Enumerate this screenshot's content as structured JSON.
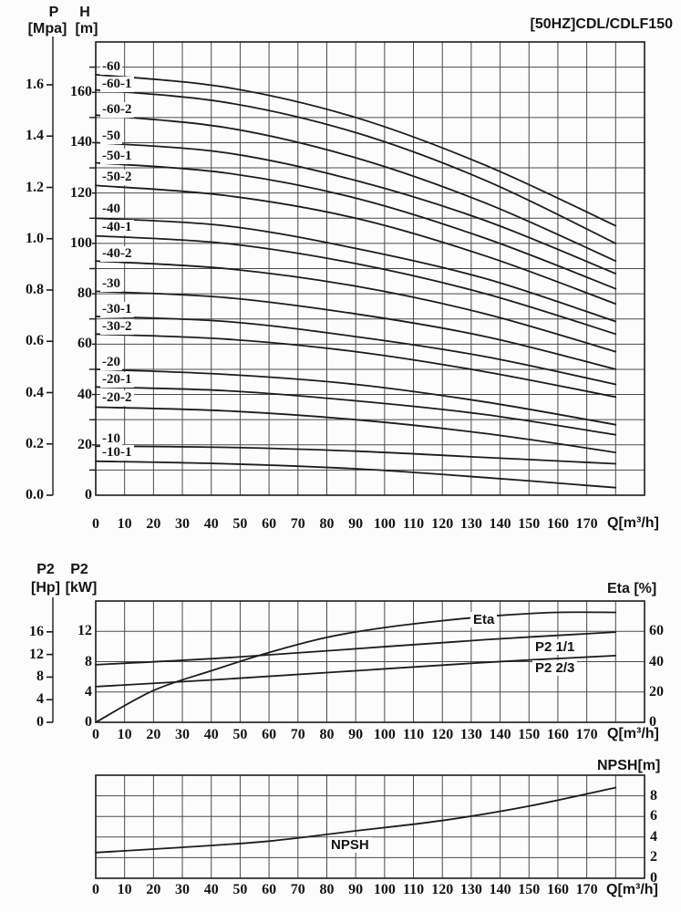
{
  "title": "[50HZ]CDL/CDLF150",
  "chart_data": [
    {
      "type": "line",
      "name": "head-flow-curves",
      "title": "[50HZ]CDL/CDLF150",
      "x_axis": {
        "label": "Q[m³/h]",
        "min": 0,
        "max": 190,
        "grid_step": 10,
        "ticks": [
          "0",
          "10",
          "20",
          "30",
          "40",
          "50",
          "60",
          "70",
          "80",
          "90",
          "100",
          "110",
          "120",
          "130",
          "140",
          "150",
          "160",
          "170"
        ]
      },
      "y_axis_pressure": {
        "name": "P",
        "unit": "[Mpa]",
        "min": 0,
        "max": 1.6,
        "ticks": [
          "0.0",
          "0.2",
          "0.4",
          "0.6",
          "0.8",
          "1.0",
          "1.2",
          "1.4",
          "1.6"
        ]
      },
      "y_axis_head": {
        "name": "H",
        "unit": "[m]",
        "min": 0,
        "max": 180,
        "grid_step": 10,
        "ticks": [
          "0",
          "20",
          "40",
          "60",
          "80",
          "100",
          "120",
          "140",
          "160"
        ]
      },
      "series": [
        {
          "label": "-60",
          "label_h": 170,
          "points": [
            [
              0,
              167
            ],
            [
              45,
              162
            ],
            [
              90,
              150
            ],
            [
              135,
              131
            ],
            [
              180,
              107
            ]
          ]
        },
        {
          "label": "-60-1",
          "label_h": 163,
          "points": [
            [
              0,
              161
            ],
            [
              45,
              156
            ],
            [
              90,
              144
            ],
            [
              135,
              125
            ],
            [
              180,
              100
            ]
          ]
        },
        {
          "label": "-60-2",
          "label_h": 153,
          "points": [
            [
              0,
              151
            ],
            [
              45,
              146
            ],
            [
              90,
              134
            ],
            [
              135,
              116
            ],
            [
              180,
              93
            ]
          ]
        },
        {
          "label": "-50",
          "label_h": 142.5,
          "points": [
            [
              0,
              140
            ],
            [
              45,
              136
            ],
            [
              90,
              125
            ],
            [
              135,
              109
            ],
            [
              180,
              88
            ]
          ]
        },
        {
          "label": "-50-1",
          "label_h": 134.5,
          "points": [
            [
              0,
              132
            ],
            [
              45,
              128
            ],
            [
              90,
              118
            ],
            [
              135,
              102
            ],
            [
              180,
              82
            ]
          ]
        },
        {
          "label": "-50-2",
          "label_h": 126,
          "points": [
            [
              0,
              123
            ],
            [
              45,
              119
            ],
            [
              90,
              110
            ],
            [
              135,
              95
            ],
            [
              180,
              76
            ]
          ]
        },
        {
          "label": "-40",
          "label_h": 113.5,
          "points": [
            [
              0,
              110
            ],
            [
              45,
              107
            ],
            [
              90,
              98
            ],
            [
              135,
              86
            ],
            [
              180,
              69
            ]
          ]
        },
        {
          "label": "-40-1",
          "label_h": 106,
          "points": [
            [
              0,
              103
            ],
            [
              45,
              100
            ],
            [
              90,
              92
            ],
            [
              135,
              80
            ],
            [
              180,
              64
            ]
          ]
        },
        {
          "label": "-40-2",
          "label_h": 95.5,
          "points": [
            [
              0,
              93
            ],
            [
              45,
              90
            ],
            [
              90,
              83
            ],
            [
              135,
              72
            ],
            [
              180,
              57
            ]
          ]
        },
        {
          "label": "-30",
          "label_h": 83.5,
          "points": [
            [
              0,
              81
            ],
            [
              45,
              78.5
            ],
            [
              90,
              72
            ],
            [
              135,
              63
            ],
            [
              180,
              50
            ]
          ]
        },
        {
          "label": "-30-1",
          "label_h": 73.5,
          "points": [
            [
              0,
              71
            ],
            [
              45,
              69
            ],
            [
              90,
              63
            ],
            [
              135,
              55
            ],
            [
              180,
              44
            ]
          ]
        },
        {
          "label": "-30-2",
          "label_h": 66.5,
          "points": [
            [
              0,
              64
            ],
            [
              45,
              62
            ],
            [
              90,
              57
            ],
            [
              135,
              49
            ],
            [
              180,
              39
            ]
          ]
        },
        {
          "label": "-20",
          "label_h": 52.5,
          "points": [
            [
              0,
              50
            ],
            [
              45,
              48
            ],
            [
              90,
              44
            ],
            [
              135,
              37
            ],
            [
              180,
              28
            ]
          ]
        },
        {
          "label": "-20-1",
          "label_h": 45.5,
          "points": [
            [
              0,
              43
            ],
            [
              45,
              41.5
            ],
            [
              90,
              37.5
            ],
            [
              135,
              32
            ],
            [
              180,
              24
            ]
          ]
        },
        {
          "label": "-20-2",
          "label_h": 38.5,
          "points": [
            [
              0,
              35
            ],
            [
              45,
              33.5
            ],
            [
              90,
              30
            ],
            [
              135,
              24.5
            ],
            [
              180,
              17
            ]
          ]
        },
        {
          "label": "-10",
          "label_h": 22,
          "points": [
            [
              0,
              19.5
            ],
            [
              45,
              19
            ],
            [
              90,
              17.5
            ],
            [
              135,
              15
            ],
            [
              180,
              12.5
            ]
          ]
        },
        {
          "label": "-10-1",
          "label_h": 16.5,
          "points": [
            [
              0,
              13.5
            ],
            [
              45,
              12.5
            ],
            [
              90,
              10.5
            ],
            [
              135,
              7
            ],
            [
              180,
              3
            ]
          ]
        }
      ]
    },
    {
      "type": "line",
      "name": "power-efficiency-curves",
      "x_axis": {
        "label": "Q[m³/h]",
        "min": 0,
        "max": 190,
        "grid_step": 10,
        "ticks": [
          "0",
          "10",
          "20",
          "30",
          "40",
          "50",
          "60",
          "70",
          "80",
          "90",
          "100",
          "110",
          "120",
          "130",
          "140",
          "150",
          "160",
          "170"
        ]
      },
      "y_axis_hp": {
        "name": "P2",
        "unit": "[Hp]",
        "min": 0,
        "max": 16,
        "ticks": [
          "0",
          "4",
          "8",
          "12",
          "16"
        ]
      },
      "y_axis_kw": {
        "name": "P2",
        "unit": "[kW]",
        "min": 0,
        "max": 16,
        "ticks": [
          "0",
          "4",
          "8",
          "12"
        ]
      },
      "y_axis_eta": {
        "title": "Eta [%]",
        "min": 0,
        "max": 80,
        "ticks": [
          "0",
          "20",
          "40",
          "60"
        ]
      },
      "series": [
        {
          "name": "Eta",
          "axis": "eta",
          "points": [
            [
              0,
              0
            ],
            [
              20,
              21
            ],
            [
              40,
              34
            ],
            [
              60,
              46
            ],
            [
              80,
              56
            ],
            [
              100,
              62.5
            ],
            [
              120,
              67
            ],
            [
              140,
              70.5
            ],
            [
              160,
              72.5
            ],
            [
              180,
              72.5
            ]
          ]
        },
        {
          "name": "P2 1/1",
          "axis": "kw",
          "points": [
            [
              0,
              7.6
            ],
            [
              45,
              8.5
            ],
            [
              90,
              9.7
            ],
            [
              135,
              10.9
            ],
            [
              180,
              11.9
            ]
          ]
        },
        {
          "name": "P2 2/3",
          "axis": "kw",
          "points": [
            [
              0,
              4.7
            ],
            [
              45,
              5.7
            ],
            [
              90,
              6.8
            ],
            [
              135,
              7.9
            ],
            [
              180,
              8.8
            ]
          ]
        }
      ]
    },
    {
      "type": "line",
      "name": "npsh-curve",
      "x_axis": {
        "label": "Q[m³/h]",
        "min": 0,
        "max": 190,
        "grid_step": 10,
        "ticks": [
          "0",
          "10",
          "20",
          "30",
          "40",
          "50",
          "60",
          "70",
          "80",
          "90",
          "100",
          "110",
          "120",
          "130",
          "140",
          "150",
          "160",
          "170"
        ]
      },
      "y_axis_npsh": {
        "title": "NPSH[m]",
        "min": 0,
        "max": 10,
        "grid_step": 2,
        "ticks": [
          "0",
          "2",
          "4",
          "6",
          "8"
        ]
      },
      "series": [
        {
          "name": "NPSH",
          "points": [
            [
              0,
              2.5
            ],
            [
              30,
              3.0
            ],
            [
              60,
              3.6
            ],
            [
              90,
              4.6
            ],
            [
              120,
              5.6
            ],
            [
              150,
              7.0
            ],
            [
              180,
              8.8
            ]
          ]
        }
      ]
    }
  ]
}
